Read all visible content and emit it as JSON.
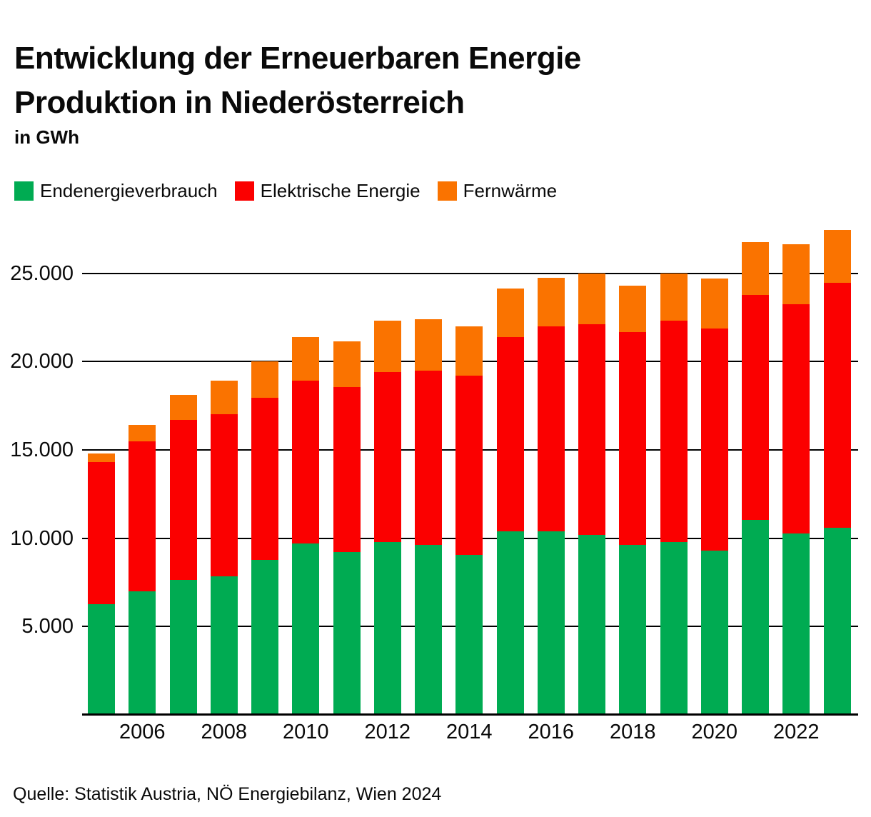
{
  "title_lines": {
    "line1": "Entwicklung der Erneuerbaren Energie",
    "line2": "Produktion in Niederösterreich"
  },
  "unit_label": "in GWh",
  "source": "Quelle: Statistik Austria, NÖ Energiebilanz, Wien 2024",
  "colors": {
    "endenergieverbrauch": "#00AB52",
    "elektrische_energie": "#FB0000",
    "fernwaerme": "#FA7300",
    "text": "#0A0A0A",
    "grid": "#000000"
  },
  "legend": {
    "items": [
      {
        "label": "Endenergieverbrauch",
        "color": "#00AB52"
      },
      {
        "label": "Elektrische Energie",
        "color": "#FB0000"
      },
      {
        "label": "Fernwärme",
        "color": "#FA7300"
      }
    ]
  },
  "chart_data": {
    "type": "bar",
    "stacked": true,
    "title": "Entwicklung der Erneuerbaren Energie Produktion in Niederösterreich",
    "ylabel": "in GWh",
    "grid": true,
    "legend_position": "top",
    "categories": [
      2005,
      2006,
      2007,
      2008,
      2009,
      2010,
      2011,
      2012,
      2013,
      2014,
      2015,
      2016,
      2017,
      2018,
      2019,
      2020,
      2021,
      2022,
      2023
    ],
    "x_tick_labels": [
      "2006",
      "2008",
      "2010",
      "2012",
      "2014",
      "2016",
      "2018",
      "2020",
      "2022"
    ],
    "ylim": [
      0,
      27500
    ],
    "y_ticks": [
      5000,
      10000,
      15000,
      20000,
      25000
    ],
    "y_tick_labels": [
      "5.000",
      "10.000",
      "15.000",
      "20.000",
      "25.000"
    ],
    "series": [
      {
        "name": "Endenergieverbrauch",
        "color": "#00AB52",
        "values": [
          6250,
          7000,
          7650,
          7850,
          8750,
          9700,
          9200,
          9800,
          9600,
          9050,
          10400,
          10400,
          10200,
          9600,
          9800,
          9300,
          11050,
          10250,
          10600
        ]
      },
      {
        "name": "Elektrische Energie",
        "color": "#FB0000",
        "values": [
          8050,
          8500,
          9050,
          9150,
          9200,
          9200,
          9350,
          9600,
          9900,
          10150,
          11000,
          11600,
          11900,
          12050,
          12500,
          12550,
          12700,
          13000,
          13850
        ]
      },
      {
        "name": "Fernwärme",
        "color": "#FA7300",
        "values": [
          500,
          900,
          1400,
          1900,
          2050,
          2500,
          2600,
          2900,
          2900,
          2800,
          2750,
          2750,
          2900,
          2650,
          2700,
          2850,
          3000,
          3400,
          3000
        ]
      }
    ],
    "totals": [
      14800,
      16400,
      18100,
      18900,
      20000,
      21400,
      21150,
      22300,
      22400,
      22000,
      24150,
      24750,
      25000,
      24300,
      25000,
      24700,
      26750,
      26650,
      27450
    ]
  }
}
